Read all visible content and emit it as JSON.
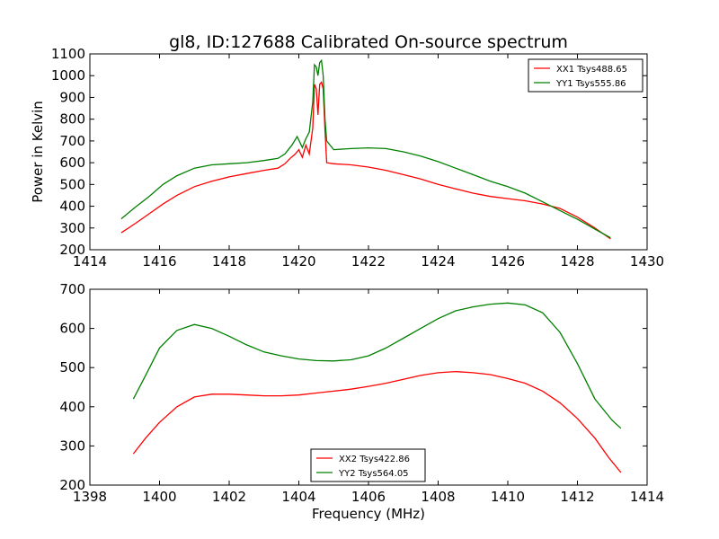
{
  "title": "gl8, ID:127688 Calibrated On-source spectrum",
  "chart_data": [
    {
      "type": "line",
      "title": "gl8, ID:127688 Calibrated On-source spectrum",
      "xlabel": "",
      "ylabel": "Power in Kelvin",
      "xlim": [
        1414,
        1430
      ],
      "ylim": [
        200,
        1100
      ],
      "xticks": [
        1414,
        1416,
        1418,
        1420,
        1422,
        1424,
        1426,
        1428,
        1430
      ],
      "yticks": [
        200,
        300,
        400,
        500,
        600,
        700,
        800,
        900,
        1000,
        1100
      ],
      "grid": false,
      "legend_position": "top-right",
      "series": [
        {
          "name": "XX1 Tsys488.65",
          "color": "#ff0000",
          "x": [
            1414.9,
            1415.3,
            1415.7,
            1416.1,
            1416.5,
            1417.0,
            1417.5,
            1418.0,
            1418.5,
            1419.0,
            1419.4,
            1419.6,
            1419.75,
            1419.9,
            1420.0,
            1420.1,
            1420.2,
            1420.3,
            1420.4,
            1420.45,
            1420.5,
            1420.55,
            1420.6,
            1420.65,
            1420.7,
            1420.75,
            1420.8,
            1421.0,
            1421.5,
            1422.0,
            1422.5,
            1423.0,
            1423.5,
            1424.0,
            1424.5,
            1425.0,
            1425.5,
            1426.0,
            1426.5,
            1427.0,
            1427.5,
            1428.0,
            1428.5,
            1428.95
          ],
          "y": [
            278,
            320,
            365,
            410,
            450,
            490,
            515,
            535,
            550,
            565,
            575,
            595,
            620,
            640,
            660,
            625,
            680,
            640,
            760,
            960,
            940,
            820,
            960,
            970,
            940,
            750,
            600,
            595,
            590,
            580,
            565,
            545,
            525,
            500,
            480,
            460,
            445,
            435,
            425,
            410,
            390,
            350,
            300,
            250
          ]
        },
        {
          "name": "YY1 Tsys555.86",
          "color": "#008000",
          "x": [
            1414.9,
            1415.3,
            1415.7,
            1416.1,
            1416.5,
            1417.0,
            1417.5,
            1418.0,
            1418.5,
            1419.0,
            1419.4,
            1419.6,
            1419.8,
            1419.95,
            1420.1,
            1420.2,
            1420.3,
            1420.4,
            1420.45,
            1420.5,
            1420.55,
            1420.6,
            1420.65,
            1420.7,
            1420.75,
            1420.8,
            1421.0,
            1421.5,
            1422.0,
            1422.5,
            1423.0,
            1423.5,
            1424.0,
            1424.5,
            1425.0,
            1425.5,
            1426.0,
            1426.5,
            1427.0,
            1427.5,
            1428.0,
            1428.5,
            1428.95
          ],
          "y": [
            342,
            395,
            445,
            500,
            540,
            575,
            590,
            595,
            600,
            610,
            620,
            640,
            680,
            720,
            670,
            710,
            740,
            880,
            1050,
            1040,
            1000,
            1060,
            1070,
            1000,
            800,
            700,
            660,
            665,
            668,
            665,
            650,
            630,
            605,
            575,
            545,
            515,
            490,
            460,
            420,
            380,
            340,
            295,
            255
          ]
        }
      ]
    },
    {
      "type": "line",
      "title": "",
      "xlabel": "Frequency (MHz)",
      "ylabel": "",
      "xlim": [
        1398,
        1414
      ],
      "ylim": [
        200,
        700
      ],
      "xticks": [
        1398,
        1400,
        1402,
        1404,
        1406,
        1408,
        1410,
        1412,
        1414
      ],
      "yticks": [
        200,
        300,
        400,
        500,
        600,
        700
      ],
      "grid": false,
      "legend_position": "bottom-center",
      "series": [
        {
          "name": "XX2 Tsys422.86",
          "color": "#ff0000",
          "x": [
            1399.25,
            1399.6,
            1400.0,
            1400.5,
            1401.0,
            1401.5,
            1402.0,
            1402.5,
            1403.0,
            1403.5,
            1404.0,
            1404.5,
            1405.0,
            1405.5,
            1406.0,
            1406.5,
            1407.0,
            1407.5,
            1408.0,
            1408.5,
            1409.0,
            1409.5,
            1410.0,
            1410.5,
            1411.0,
            1411.5,
            1412.0,
            1412.5,
            1412.9,
            1413.25
          ],
          "y": [
            280,
            320,
            360,
            400,
            425,
            432,
            432,
            430,
            428,
            428,
            430,
            435,
            440,
            445,
            452,
            460,
            470,
            480,
            487,
            490,
            487,
            482,
            472,
            460,
            440,
            410,
            370,
            320,
            270,
            232
          ]
        },
        {
          "name": "YY2 Tsys564.05",
          "color": "#008000",
          "x": [
            1399.25,
            1399.6,
            1400.0,
            1400.5,
            1401.0,
            1401.5,
            1402.0,
            1402.5,
            1403.0,
            1403.5,
            1404.0,
            1404.5,
            1405.0,
            1405.5,
            1406.0,
            1406.5,
            1407.0,
            1407.5,
            1408.0,
            1408.5,
            1409.0,
            1409.5,
            1410.0,
            1410.5,
            1411.0,
            1411.5,
            1412.0,
            1412.5,
            1413.0,
            1413.25
          ],
          "y": [
            420,
            480,
            550,
            595,
            610,
            600,
            580,
            558,
            540,
            530,
            522,
            518,
            517,
            520,
            530,
            550,
            575,
            600,
            625,
            645,
            655,
            662,
            665,
            660,
            640,
            590,
            510,
            420,
            365,
            345
          ]
        }
      ]
    }
  ]
}
